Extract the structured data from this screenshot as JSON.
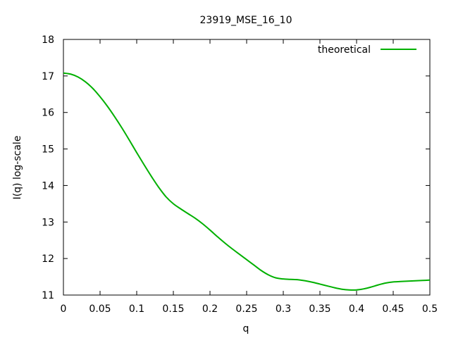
{
  "chart_data": {
    "type": "line",
    "title": "23919_MSE_16_10",
    "xlabel": "q",
    "ylabel": "I(q) log-scale",
    "xlim": [
      0,
      0.5
    ],
    "ylim": [
      11,
      18
    ],
    "x_ticks": [
      0,
      0.05,
      0.1,
      0.15,
      0.2,
      0.25,
      0.3,
      0.35,
      0.4,
      0.45,
      0.5
    ],
    "x_tick_labels": [
      "0",
      "0.05",
      "0.1",
      "0.15",
      "0.2",
      "0.25",
      "0.3",
      "0.35",
      "0.4",
      "0.45",
      "0.5"
    ],
    "y_ticks": [
      11,
      12,
      13,
      14,
      15,
      16,
      17,
      18
    ],
    "y_tick_labels": [
      "11",
      "12",
      "13",
      "14",
      "15",
      "16",
      "17",
      "18"
    ],
    "grid": false,
    "legend_position": "top-right",
    "series": [
      {
        "name": "theoretical",
        "color": "#00b000",
        "x": [
          0,
          0.01,
          0.02,
          0.03,
          0.04,
          0.05,
          0.06,
          0.07,
          0.08,
          0.09,
          0.1,
          0.11,
          0.12,
          0.13,
          0.14,
          0.15,
          0.16,
          0.17,
          0.18,
          0.19,
          0.2,
          0.21,
          0.22,
          0.23,
          0.24,
          0.25,
          0.26,
          0.27,
          0.28,
          0.29,
          0.3,
          0.31,
          0.32,
          0.33,
          0.34,
          0.35,
          0.36,
          0.37,
          0.38,
          0.39,
          0.4,
          0.41,
          0.42,
          0.43,
          0.44,
          0.45,
          0.46,
          0.47,
          0.48,
          0.49,
          0.5
        ],
        "y": [
          17.08,
          17.05,
          16.97,
          16.84,
          16.66,
          16.43,
          16.17,
          15.88,
          15.57,
          15.24,
          14.9,
          14.57,
          14.25,
          13.95,
          13.69,
          13.5,
          13.36,
          13.23,
          13.1,
          12.95,
          12.78,
          12.6,
          12.43,
          12.27,
          12.12,
          11.97,
          11.82,
          11.67,
          11.55,
          11.47,
          11.44,
          11.43,
          11.42,
          11.39,
          11.35,
          11.3,
          11.25,
          11.2,
          11.16,
          11.14,
          11.14,
          11.17,
          11.22,
          11.28,
          11.33,
          11.36,
          11.37,
          11.38,
          11.39,
          11.4,
          11.41
        ]
      }
    ]
  }
}
